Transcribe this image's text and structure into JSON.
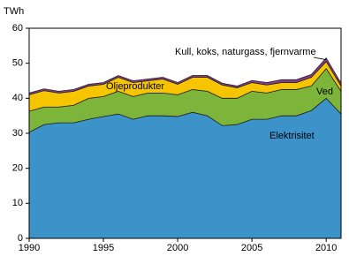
{
  "chart_data": {
    "type": "stacked_area",
    "y_axis_label": "TWh",
    "x": [
      1990,
      1991,
      1992,
      1993,
      1994,
      1995,
      1996,
      1997,
      1998,
      1999,
      2000,
      2001,
      2002,
      2003,
      2004,
      2005,
      2006,
      2007,
      2008,
      2009,
      2010,
      2011
    ],
    "series": [
      {
        "name": "Elektrisitet",
        "color": "#3c93c9",
        "values": [
          30.3,
          32.5,
          33,
          33,
          34,
          34.8,
          35.5,
          34,
          35,
          35,
          34.8,
          36,
          35,
          32.2,
          32.5,
          34,
          34,
          35,
          35,
          36.5,
          40,
          35.5
        ]
      },
      {
        "name": "Ved",
        "color": "#7db53a",
        "values": [
          6,
          5,
          4.5,
          5,
          6,
          5.7,
          6.5,
          6.5,
          6.5,
          6.5,
          6.2,
          6.5,
          7,
          7.8,
          7.5,
          8,
          7.5,
          7.5,
          7.5,
          7,
          8.5,
          6.5
        ]
      },
      {
        "name": "Oljeprodukter",
        "color": "#f6c500",
        "values": [
          4.7,
          4.7,
          4,
          4,
          3.5,
          3.5,
          4,
          4,
          3.5,
          4,
          3,
          3.5,
          4,
          3.8,
          3,
          2.5,
          2.3,
          2,
          2,
          2.5,
          2,
          1.5
        ]
      },
      {
        "name": "Kull, koks, naturgass, fjernvarme",
        "color": "#8c3a8e",
        "values": [
          0.5,
          0.5,
          0.5,
          0.5,
          0.5,
          0.5,
          0.5,
          0.5,
          0.5,
          0.5,
          0.5,
          0.5,
          0.5,
          0.5,
          0.5,
          0.6,
          0.7,
          0.8,
          0.8,
          0.8,
          1,
          0.8
        ]
      }
    ],
    "xlim": [
      1990,
      2011
    ],
    "xticks": [
      1990,
      1995,
      2000,
      2005,
      2010
    ],
    "ylim": [
      0,
      60
    ],
    "yticks": [
      0,
      10,
      20,
      30,
      40,
      50,
      60
    ]
  }
}
